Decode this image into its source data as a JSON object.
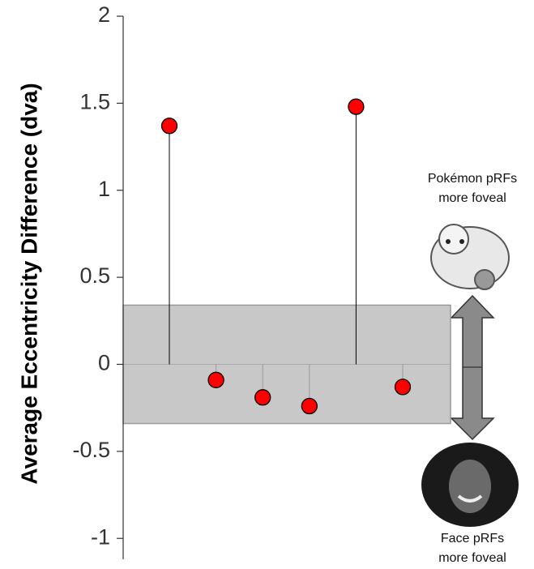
{
  "chart_data": {
    "type": "stem",
    "y_label": "Average Eccentricity Difference (dva)",
    "categories": [
      null,
      null,
      null,
      null,
      null,
      null
    ],
    "values": [
      1.37,
      -0.09,
      -0.19,
      -0.24,
      1.48,
      -0.13
    ],
    "color": "#ff0000",
    "ylim": [
      -1.12,
      2
    ],
    "yticks": [
      2,
      1.5,
      1,
      0.5,
      0,
      -0.5,
      -1
    ],
    "shaded_range": [
      -0.34,
      0.34
    ],
    "annotations": {
      "top": [
        "Pokémon pRFs",
        "more foveal"
      ],
      "bottom": [
        "Face pRFs",
        "more foveal"
      ]
    }
  }
}
